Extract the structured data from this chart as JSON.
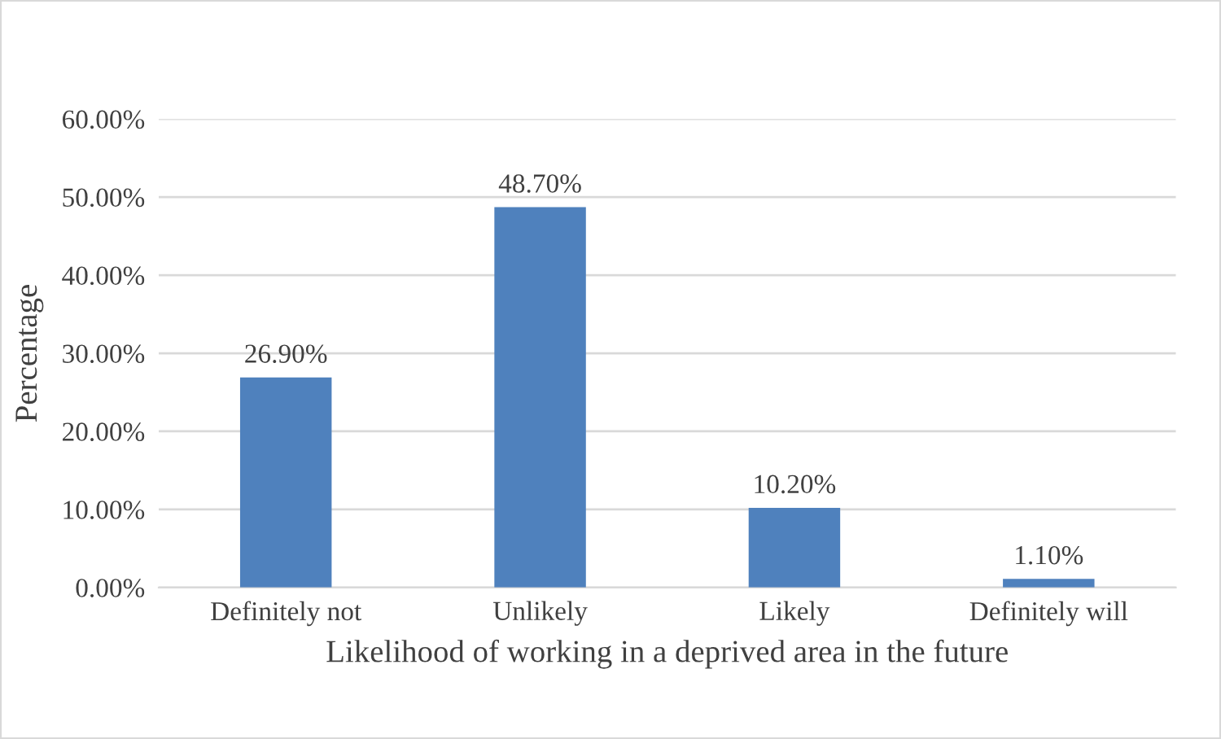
{
  "chart_data": {
    "type": "bar",
    "xlabel": "Likelihood of working in a deprived area in the future",
    "ylabel": "Percentage",
    "categories": [
      "Definitely not",
      "Unlikely",
      "Likely",
      "Definitely will"
    ],
    "values": [
      26.9,
      48.7,
      10.2,
      1.1
    ],
    "value_labels": [
      "26.90%",
      "48.70%",
      "10.20%",
      "1.10%"
    ],
    "color": "#4f81bd",
    "ylim": [
      0,
      60
    ],
    "yticks": [
      {
        "value": 0,
        "label": "0.00%"
      },
      {
        "value": 10,
        "label": "10.00%"
      },
      {
        "value": 20,
        "label": "20.00%"
      },
      {
        "value": 30,
        "label": "30.00%"
      },
      {
        "value": 40,
        "label": "40.00%"
      },
      {
        "value": 50,
        "label": "50.00%"
      },
      {
        "value": 60,
        "label": "60.00%"
      }
    ],
    "grid": "y"
  }
}
